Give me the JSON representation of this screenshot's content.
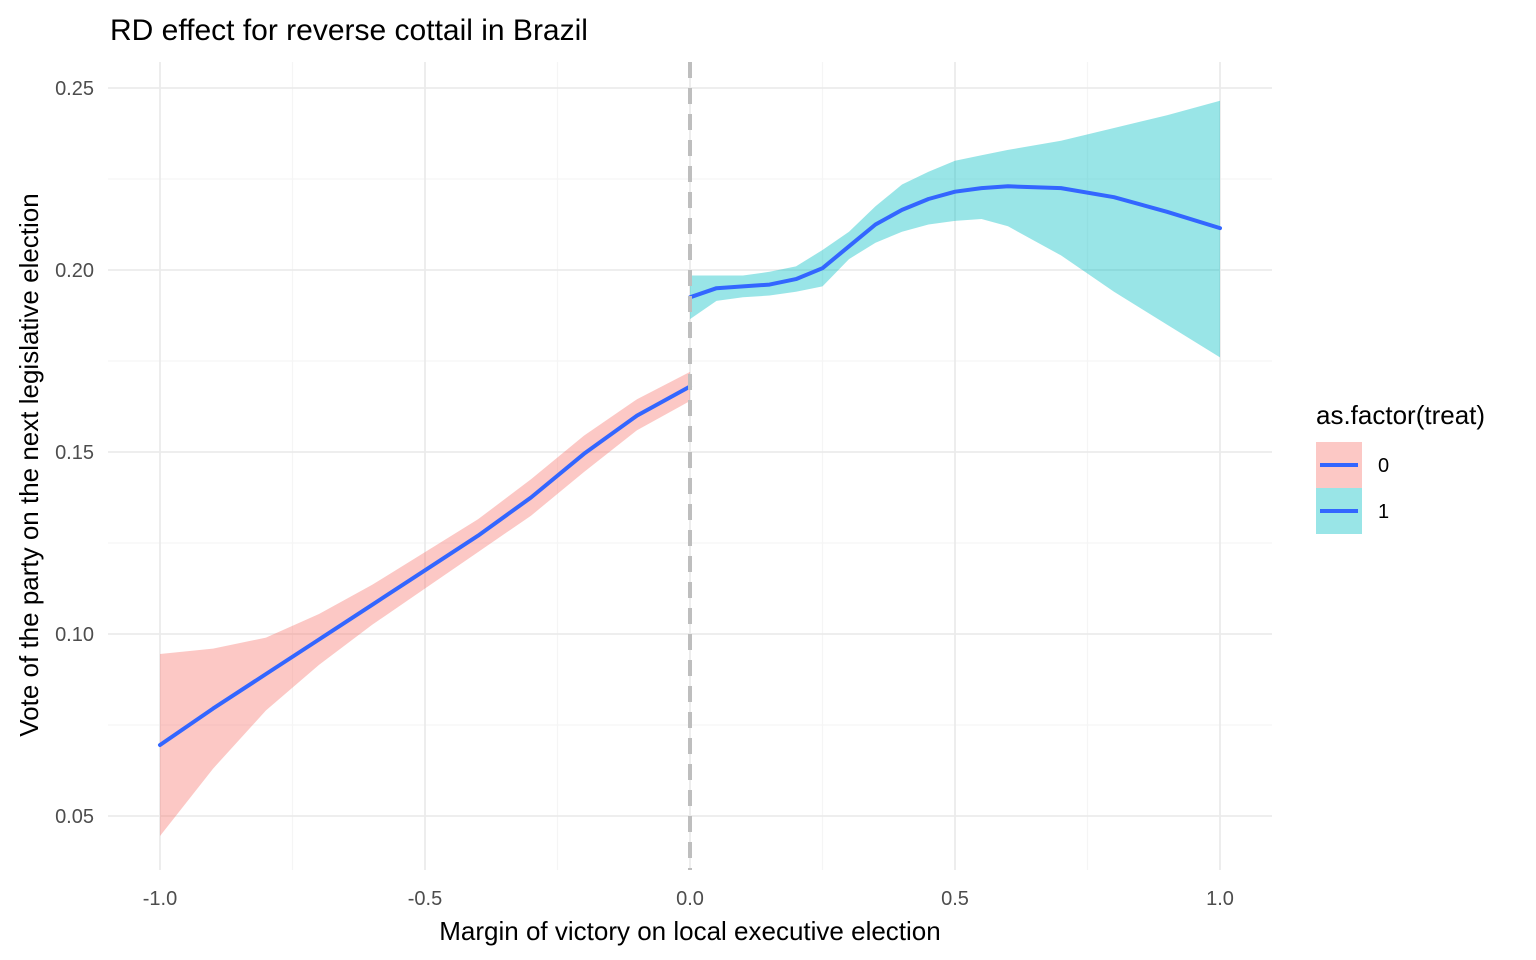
{
  "chart_data": {
    "type": "line",
    "title": "RD effect for reverse cottail in Brazil",
    "xlabel": "Margin of victory on local executive election",
    "ylabel": "Vote of the party on the next legislative election",
    "xlim": [
      -1.0,
      1.0
    ],
    "ylim": [
      0.05,
      0.25
    ],
    "x_ticks": [
      "-1.0",
      "-0.5",
      "0.0",
      "0.5",
      "1.0"
    ],
    "y_ticks": [
      "0.05",
      "0.10",
      "0.15",
      "0.20",
      "0.25"
    ],
    "grid": true,
    "cutoff": 0.0,
    "legend": {
      "title": "as.factor(treat)",
      "placement": "right",
      "entries": [
        "0",
        "1"
      ]
    },
    "colors": {
      "line": "#3366FF",
      "ribbon_0": "#F8766D",
      "ribbon_1": "#00BFC4",
      "cutoff_line": "#BEBEBE",
      "grid_major": "#EBEBEB",
      "grid_minor": "#F5F5F5"
    },
    "series": [
      {
        "name": "0",
        "x": [
          -1.0,
          -0.9,
          -0.8,
          -0.7,
          -0.6,
          -0.5,
          -0.4,
          -0.3,
          -0.2,
          -0.1,
          0.0
        ],
        "y": [
          0.0695,
          0.0795,
          0.089,
          0.0985,
          0.108,
          0.1175,
          0.127,
          0.1375,
          0.1495,
          0.16,
          0.168
        ],
        "lower": [
          0.0445,
          0.063,
          0.079,
          0.0915,
          0.1025,
          0.1125,
          0.1225,
          0.1325,
          0.1445,
          0.156,
          0.164
        ],
        "upper": [
          0.0945,
          0.096,
          0.099,
          0.1055,
          0.1135,
          0.1225,
          0.1315,
          0.1425,
          0.1545,
          0.1645,
          0.172
        ]
      },
      {
        "name": "1",
        "x": [
          0.0,
          0.05,
          0.1,
          0.15,
          0.2,
          0.25,
          0.3,
          0.35,
          0.4,
          0.45,
          0.5,
          0.55,
          0.6,
          0.7,
          0.8,
          0.9,
          1.0
        ],
        "y": [
          0.1925,
          0.195,
          0.1955,
          0.196,
          0.1975,
          0.2005,
          0.2065,
          0.2125,
          0.2165,
          0.2195,
          0.2215,
          0.2225,
          0.223,
          0.2225,
          0.22,
          0.216,
          0.2115
        ],
        "lower": [
          0.1865,
          0.1915,
          0.1925,
          0.193,
          0.194,
          0.1955,
          0.203,
          0.2075,
          0.2105,
          0.2125,
          0.2135,
          0.214,
          0.212,
          0.204,
          0.194,
          0.185,
          0.176
        ],
        "upper": [
          0.1985,
          0.1985,
          0.1985,
          0.1995,
          0.201,
          0.2055,
          0.2105,
          0.2175,
          0.2235,
          0.227,
          0.23,
          0.2315,
          0.233,
          0.2355,
          0.239,
          0.2425,
          0.2465
        ]
      }
    ]
  }
}
